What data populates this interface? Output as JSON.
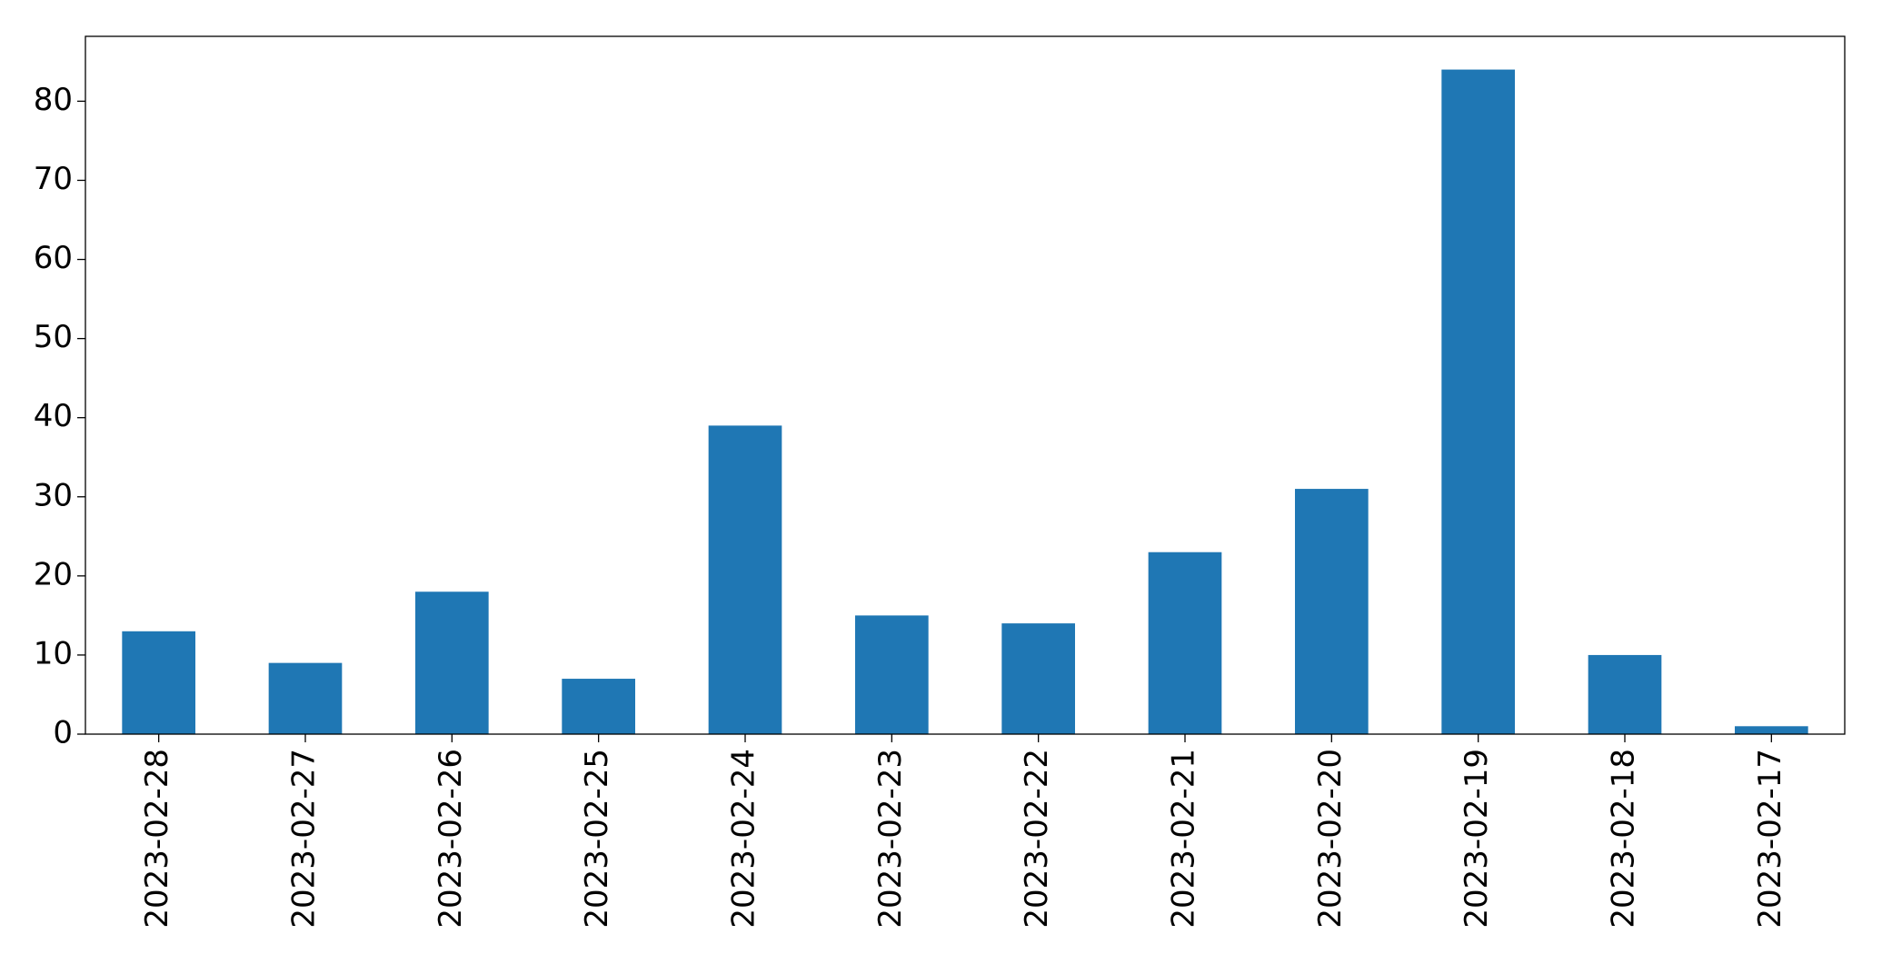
{
  "chart_data": {
    "type": "bar",
    "categories": [
      "2023-02-28",
      "2023-02-27",
      "2023-02-26",
      "2023-02-25",
      "2023-02-24",
      "2023-02-23",
      "2023-02-22",
      "2023-02-21",
      "2023-02-20",
      "2023-02-19",
      "2023-02-18",
      "2023-02-17"
    ],
    "values": [
      13,
      9,
      18,
      7,
      39,
      15,
      14,
      23,
      31,
      84,
      10,
      1
    ],
    "color": "#1f77b4",
    "ylim": [
      0,
      88.2
    ],
    "yticks": [
      0,
      10,
      20,
      30,
      40,
      50,
      60,
      70,
      80
    ],
    "grid": false
  }
}
